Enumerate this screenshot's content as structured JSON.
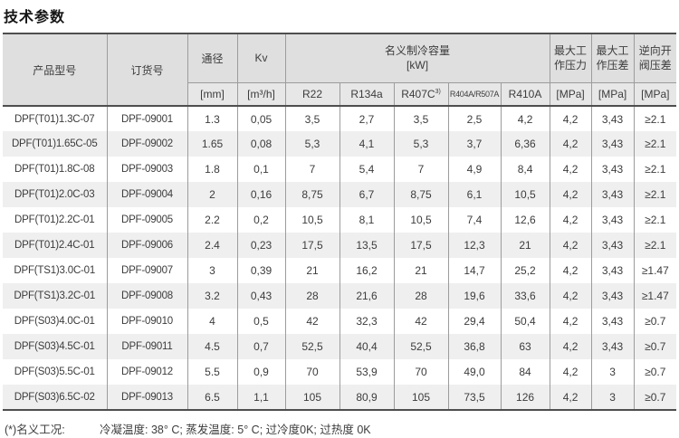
{
  "page": {
    "title": "技术参数"
  },
  "colors": {
    "header_bg": "#dfdfdf",
    "subheader_bg": "#e7e7e7",
    "row_alt_bg": "#efefef",
    "border_dark": "#4e4e4e",
    "border_light": "#9c9c9c",
    "text": "#3c3c3c"
  },
  "table": {
    "header": {
      "product_model": "产品型号",
      "order_no": "订货号",
      "diameter": "通径",
      "diameter_unit": "[mm]",
      "kv": "Kv",
      "kv_unit": "[m³/h]",
      "capacity_group": "名义制冷容量",
      "capacity_unit": "[kW]",
      "refrigerants": [
        "R22",
        "R134a",
        "R407C",
        "R404A/R507A",
        "R410A"
      ],
      "r407c_superscript": "3)",
      "max_working_pressure": "最大工作压力",
      "max_pressure_diff": "最大工作压差",
      "reverse_opening_diff": "逆向开阀压差",
      "pressure_unit": "[MPa]"
    },
    "column_keys": [
      "product-model",
      "order-no",
      "diameter",
      "kv",
      "r22",
      "r134a",
      "r407c",
      "r404a-r507a",
      "r410a",
      "max-working-pressure",
      "max-pressure-diff",
      "reverse-opening-pressure-diff"
    ],
    "rows": [
      [
        "DPF(T01)1.3C-07",
        "DPF-09001",
        "1.3",
        "0,05",
        "3,5",
        "2,7",
        "3,5",
        "2,5",
        "4,2",
        "4,2",
        "3,43",
        "≥2.1"
      ],
      [
        "DPF(T01)1.65C-05",
        "DPF-09002",
        "1.65",
        "0,08",
        "5,3",
        "4,1",
        "5,3",
        "3,7",
        "6,36",
        "4,2",
        "3,43",
        "≥2.1"
      ],
      [
        "DPF(T01)1.8C-08",
        "DPF-09003",
        "1.8",
        "0,1",
        "7",
        "5,4",
        "7",
        "4,9",
        "8,4",
        "4,2",
        "3,43",
        "≥2.1"
      ],
      [
        "DPF(T01)2.0C-03",
        "DPF-09004",
        "2",
        "0,16",
        "8,75",
        "6,7",
        "8,75",
        "6,1",
        "10,5",
        "4,2",
        "3,43",
        "≥2.1"
      ],
      [
        "DPF(T01)2.2C-01",
        "DPF-09005",
        "2.2",
        "0,2",
        "10,5",
        "8,1",
        "10,5",
        "7,4",
        "12,6",
        "4,2",
        "3,43",
        "≥2.1"
      ],
      [
        "DPF(T01)2.4C-01",
        "DPF-09006",
        "2.4",
        "0,23",
        "17,5",
        "13,5",
        "17,5",
        "12,3",
        "21",
        "4,2",
        "3,43",
        "≥2.1"
      ],
      [
        "DPF(TS1)3.0C-01",
        "DPF-09007",
        "3",
        "0,39",
        "21",
        "16,2",
        "21",
        "14,7",
        "25,2",
        "4,2",
        "3,43",
        "≥1.47"
      ],
      [
        "DPF(TS1)3.2C-01",
        "DPF-09008",
        "3.2",
        "0,43",
        "28",
        "21,6",
        "28",
        "19,6",
        "33,6",
        "4,2",
        "3,43",
        "≥1.47"
      ],
      [
        "DPF(S03)4.0C-01",
        "DPF-09010",
        "4",
        "0,5",
        "42",
        "32,3",
        "42",
        "29,4",
        "50,4",
        "4,2",
        "3,43",
        "≥0.7"
      ],
      [
        "DPF(S03)4.5C-01",
        "DPF-09011",
        "4.5",
        "0,7",
        "52,5",
        "40,4",
        "52,5",
        "36,8",
        "63",
        "4,2",
        "3,43",
        "≥0.7"
      ],
      [
        "DPF(S03)5.5C-01",
        "DPF-09012",
        "5.5",
        "0,9",
        "70",
        "53,9",
        "70",
        "49,0",
        "84",
        "4,2",
        "3",
        "≥0.7"
      ],
      [
        "DPF(S03)6.5C-02",
        "DPF-09013",
        "6.5",
        "1,1",
        "105",
        "80,9",
        "105",
        "73,5",
        "126",
        "4,2",
        "3",
        "≥0.7"
      ]
    ]
  },
  "footnote": {
    "label": "(*)名义工况:",
    "text": "冷凝温度: 38° C; 蒸发温度: 5° C; 过冷度0K; 过热度 0K"
  }
}
